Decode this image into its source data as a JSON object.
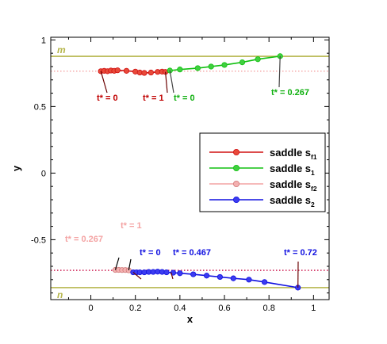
{
  "chart_data": {
    "type": "line",
    "xlabel": "x",
    "ylabel": "y",
    "xlim": [
      -0.18,
      1.07
    ],
    "ylim": [
      -0.95,
      1.02
    ],
    "x_ticks": [
      0,
      0.2,
      0.4,
      0.6,
      0.8,
      1
    ],
    "x_tick_labels": [
      "0",
      "0.2",
      "0.4",
      "0.6",
      "0.8",
      "1"
    ],
    "y_ticks": [
      -0.5,
      0,
      0.5,
      1
    ],
    "y_tick_labels": [
      "-0.5",
      "0",
      "0.5",
      "1"
    ],
    "grid": false,
    "legend_position": "center-right",
    "reference_lines": [
      {
        "label": "m",
        "y": 0.877,
        "color": "#b5b54a",
        "style": "solid"
      },
      {
        "label": "n",
        "y": -0.86,
        "color": "#b5b54a",
        "style": "solid"
      },
      {
        "label": "",
        "y": 0.765,
        "color": "#f4a3a3",
        "style": "dotted"
      },
      {
        "label": "",
        "y": -0.73,
        "color": "#c8003c",
        "style": "dotted"
      }
    ],
    "series": [
      {
        "name": "saddle s",
        "subscript": "f1",
        "color": "#d01010",
        "fill": "#e84a3a",
        "points": [
          {
            "x": 0.045,
            "y": 0.765
          },
          {
            "x": 0.06,
            "y": 0.768
          },
          {
            "x": 0.075,
            "y": 0.765
          },
          {
            "x": 0.09,
            "y": 0.77
          },
          {
            "x": 0.105,
            "y": 0.768
          },
          {
            "x": 0.12,
            "y": 0.772
          },
          {
            "x": 0.16,
            "y": 0.768
          },
          {
            "x": 0.2,
            "y": 0.762
          },
          {
            "x": 0.22,
            "y": 0.755
          },
          {
            "x": 0.24,
            "y": 0.752
          },
          {
            "x": 0.27,
            "y": 0.755
          },
          {
            "x": 0.3,
            "y": 0.76
          },
          {
            "x": 0.32,
            "y": 0.762
          },
          {
            "x": 0.335,
            "y": 0.76
          }
        ]
      },
      {
        "name": "saddle s",
        "subscript": "1",
        "color": "#10c010",
        "fill": "#40d040",
        "points": [
          {
            "x": 0.355,
            "y": 0.77
          },
          {
            "x": 0.4,
            "y": 0.778
          },
          {
            "x": 0.48,
            "y": 0.788
          },
          {
            "x": 0.54,
            "y": 0.8
          },
          {
            "x": 0.6,
            "y": 0.812
          },
          {
            "x": 0.68,
            "y": 0.832
          },
          {
            "x": 0.75,
            "y": 0.855
          },
          {
            "x": 0.85,
            "y": 0.878
          }
        ]
      },
      {
        "name": "saddle s",
        "subscript": "f2",
        "color": "#f4a3a3",
        "fill": "#f4b0b0",
        "points": [
          {
            "x": 0.11,
            "y": -0.727
          },
          {
            "x": 0.125,
            "y": -0.727
          },
          {
            "x": 0.14,
            "y": -0.728
          },
          {
            "x": 0.155,
            "y": -0.728
          },
          {
            "x": 0.17,
            "y": -0.73
          }
        ]
      },
      {
        "name": "saddle s",
        "subscript": "2",
        "color": "#1010e0",
        "fill": "#3c3cf0",
        "points": [
          {
            "x": 0.19,
            "y": -0.745
          },
          {
            "x": 0.205,
            "y": -0.745
          },
          {
            "x": 0.22,
            "y": -0.745
          },
          {
            "x": 0.24,
            "y": -0.745
          },
          {
            "x": 0.26,
            "y": -0.742
          },
          {
            "x": 0.28,
            "y": -0.742
          },
          {
            "x": 0.3,
            "y": -0.74
          },
          {
            "x": 0.32,
            "y": -0.742
          },
          {
            "x": 0.34,
            "y": -0.745
          },
          {
            "x": 0.37,
            "y": -0.748
          },
          {
            "x": 0.4,
            "y": -0.752
          },
          {
            "x": 0.46,
            "y": -0.76
          },
          {
            "x": 0.52,
            "y": -0.77
          },
          {
            "x": 0.58,
            "y": -0.78
          },
          {
            "x": 0.64,
            "y": -0.79
          },
          {
            "x": 0.71,
            "y": -0.8
          },
          {
            "x": 0.78,
            "y": -0.818
          },
          {
            "x": 0.93,
            "y": -0.86
          }
        ]
      }
    ],
    "annotations": [
      {
        "text": "t* = 0",
        "color": "#c00000",
        "x": 0.045,
        "y": 0.765
      },
      {
        "text": "t* = 1",
        "color": "#c00000",
        "x": 0.335,
        "y": 0.76
      },
      {
        "text": "t* = 0",
        "color": "#10b010",
        "x": 0.355,
        "y": 0.77
      },
      {
        "text": "t* = 0.267",
        "color": "#10b010",
        "x": 0.85,
        "y": 0.878
      },
      {
        "text": "t* = 0.267",
        "color": "#f4a3a3",
        "x": 0.11,
        "y": -0.727
      },
      {
        "text": "t* = 1",
        "color": "#f4a3a3",
        "x": 0.17,
        "y": -0.73
      },
      {
        "text": "t* = 0",
        "color": "#1010e0",
        "x": 0.19,
        "y": -0.745
      },
      {
        "text": "t* = 0.467",
        "color": "#1010e0",
        "x": 0.36,
        "y": -0.745
      },
      {
        "text": "t* = 0.72",
        "color": "#1010e0",
        "x": 0.93,
        "y": -0.86
      }
    ]
  }
}
